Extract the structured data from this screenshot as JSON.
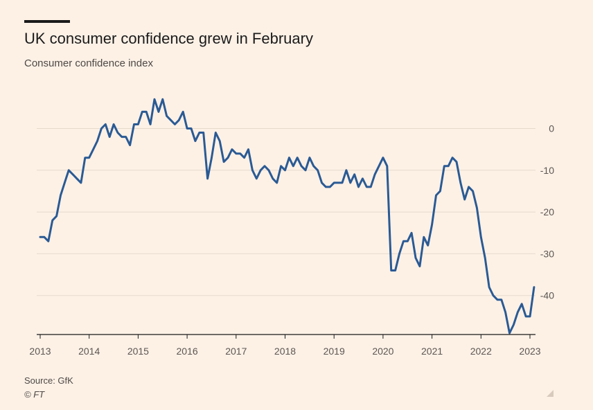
{
  "header": {
    "title": "UK consumer confidence grew in February",
    "subtitle": "Consumer confidence index"
  },
  "footer": {
    "source": "Source: GfK",
    "copyright": "© FT"
  },
  "colors": {
    "background": "#fdf1e6",
    "line": "#2a5a94",
    "grid": "#e6d9cc",
    "text": "#1a1a1a"
  },
  "chart_data": {
    "type": "line",
    "title": "UK consumer confidence grew in February",
    "subtitle": "Consumer confidence index",
    "xlabel": "",
    "ylabel": "",
    "xlim": [
      "2013-01",
      "2023-02"
    ],
    "ylim": [
      -49,
      7
    ],
    "y_ticks": [
      0,
      -10,
      -20,
      -30,
      -40
    ],
    "y_tick_labels": [
      "0",
      "-10",
      "-20",
      "-30",
      "-40"
    ],
    "x_ticks": [
      "2013",
      "2014",
      "2015",
      "2016",
      "2017",
      "2018",
      "2019",
      "2020",
      "2021",
      "2022",
      "2023"
    ],
    "y_axis_position": "right",
    "grid": true,
    "series": [
      {
        "x": [
          "2013-01",
          "2013-02",
          "2013-03",
          "2013-04",
          "2013-05",
          "2013-06",
          "2013-07",
          "2013-08",
          "2013-09",
          "2013-10",
          "2013-11",
          "2013-12",
          "2014-01",
          "2014-02",
          "2014-03",
          "2014-04",
          "2014-05",
          "2014-06",
          "2014-07",
          "2014-08",
          "2014-09",
          "2014-10",
          "2014-11",
          "2014-12",
          "2015-01",
          "2015-02",
          "2015-03",
          "2015-04",
          "2015-05",
          "2015-06",
          "2015-07",
          "2015-08",
          "2015-09",
          "2015-10",
          "2015-11",
          "2015-12",
          "2016-01",
          "2016-02",
          "2016-03",
          "2016-04",
          "2016-05",
          "2016-06",
          "2016-07",
          "2016-08",
          "2016-09",
          "2016-10",
          "2016-11",
          "2016-12",
          "2017-01",
          "2017-02",
          "2017-03",
          "2017-04",
          "2017-05",
          "2017-06",
          "2017-07",
          "2017-08",
          "2017-09",
          "2017-10",
          "2017-11",
          "2017-12",
          "2018-01",
          "2018-02",
          "2018-03",
          "2018-04",
          "2018-05",
          "2018-06",
          "2018-07",
          "2018-08",
          "2018-09",
          "2018-10",
          "2018-11",
          "2018-12",
          "2019-01",
          "2019-02",
          "2019-03",
          "2019-04",
          "2019-05",
          "2019-06",
          "2019-07",
          "2019-08",
          "2019-09",
          "2019-10",
          "2019-11",
          "2019-12",
          "2020-01",
          "2020-02",
          "2020-03",
          "2020-04",
          "2020-05",
          "2020-06",
          "2020-07",
          "2020-08",
          "2020-09",
          "2020-10",
          "2020-11",
          "2020-12",
          "2021-01",
          "2021-02",
          "2021-03",
          "2021-04",
          "2021-05",
          "2021-06",
          "2021-07",
          "2021-08",
          "2021-09",
          "2021-10",
          "2021-11",
          "2021-12",
          "2022-01",
          "2022-02",
          "2022-03",
          "2022-04",
          "2022-05",
          "2022-06",
          "2022-07",
          "2022-08",
          "2022-09",
          "2022-10",
          "2022-11",
          "2022-12",
          "2023-01",
          "2023-02"
        ],
        "values": [
          -26,
          -26,
          -27,
          -22,
          -21,
          -16,
          -13,
          -10,
          -11,
          -12,
          -13,
          -7,
          -7,
          -5,
          -3,
          0,
          1,
          -2,
          1,
          -1,
          -2,
          -2,
          -4,
          1,
          1,
          4,
          4,
          1,
          7,
          4,
          7,
          3,
          2,
          1,
          2,
          4,
          0,
          0,
          -3,
          -1,
          -1,
          -12,
          -7,
          -1,
          -3,
          -8,
          -7,
          -5,
          -6,
          -6,
          -7,
          -5,
          -10,
          -12,
          -10,
          -9,
          -10,
          -12,
          -13,
          -9,
          -10,
          -7,
          -9,
          -7,
          -9,
          -10,
          -7,
          -9,
          -10,
          -13,
          -14,
          -14,
          -13,
          -13,
          -13,
          -10,
          -13,
          -11,
          -14,
          -12,
          -14,
          -14,
          -11,
          -9,
          -7,
          -9,
          -34,
          -34,
          -30,
          -27,
          -27,
          -25,
          -31,
          -33,
          -26,
          -28,
          -23,
          -16,
          -15,
          -9,
          -9,
          -7,
          -8,
          -13,
          -17,
          -14,
          -15,
          -19,
          -26,
          -31,
          -38,
          -40,
          -41,
          -41,
          -44,
          -49,
          -47,
          -44,
          -42,
          -45,
          -45,
          -38
        ]
      }
    ]
  }
}
